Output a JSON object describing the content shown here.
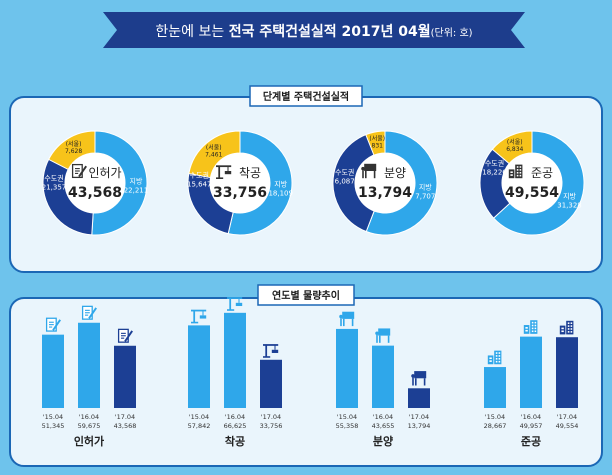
{
  "banner": {
    "prefix": "한눈에 보는 ",
    "title": "전국 주택건설실적 2017년 04월",
    "unit": "(단위: 호)"
  },
  "sections": {
    "stage": "단계별 주택건설실적",
    "trend": "연도별 물량추이"
  },
  "colors": {
    "background": "#6ec3ec",
    "panel": "#eaf5fc",
    "panel_border": "#1b67b5",
    "navy": "#1c3f94",
    "sky": "#2fa7ea",
    "yellow": "#f7c31a",
    "banner": "#1d3d8c"
  },
  "chart_data": [
    {
      "type": "pie",
      "title": "단계별 주택건설실적",
      "donuts": [
        {
          "name": "인허가",
          "icon": "document-pen-icon",
          "total": "43,568",
          "slices": [
            {
              "label": "지방",
              "value": 22211,
              "text": "22,211"
            },
            {
              "label": "수도권",
              "value": 21357,
              "text": "21,357"
            },
            {
              "label": "(서울)",
              "value": 7628,
              "text": "7,628"
            }
          ]
        },
        {
          "name": "착공",
          "icon": "crane-icon",
          "total": "33,756",
          "slices": [
            {
              "label": "지방",
              "value": 18109,
              "text": "18,109"
            },
            {
              "label": "수도권",
              "value": 15647,
              "text": "15,647"
            },
            {
              "label": "(서울)",
              "value": 7461,
              "text": "7,461"
            }
          ]
        },
        {
          "name": "분양",
          "icon": "sale-sign-icon",
          "total": "13,794",
          "slices": [
            {
              "label": "지방",
              "value": 7707,
              "text": "7,707"
            },
            {
              "label": "수도권",
              "value": 6087,
              "text": "6,087"
            },
            {
              "label": "(서울)",
              "value": 831,
              "text": "831"
            }
          ]
        },
        {
          "name": "준공",
          "icon": "building-icon",
          "total": "49,554",
          "slices": [
            {
              "label": "지방",
              "value": 31328,
              "text": "31,328"
            },
            {
              "label": "수도권",
              "value": 18226,
              "text": "18,226"
            },
            {
              "label": "(서울)",
              "value": 6834,
              "text": "6,834"
            }
          ]
        }
      ]
    },
    {
      "type": "bar",
      "title": "연도별 물량추이",
      "ylim": [
        0,
        70000
      ],
      "groups": [
        {
          "name": "인허가",
          "icon": "document-pen-icon",
          "bars": [
            {
              "year": "'15.04",
              "value": 51345,
              "text": "51,345"
            },
            {
              "year": "'16.04",
              "value": 59675,
              "text": "59,675"
            },
            {
              "year": "'17.04",
              "value": 43568,
              "text": "43,568"
            }
          ]
        },
        {
          "name": "착공",
          "icon": "crane-icon",
          "bars": [
            {
              "year": "'15.04",
              "value": 57842,
              "text": "57,842"
            },
            {
              "year": "'16.04",
              "value": 66625,
              "text": "66,625"
            },
            {
              "year": "'17.04",
              "value": 33756,
              "text": "33,756"
            }
          ]
        },
        {
          "name": "분양",
          "icon": "sale-sign-icon",
          "bars": [
            {
              "year": "'15.04",
              "value": 55358,
              "text": "55,358"
            },
            {
              "year": "'16.04",
              "value": 43655,
              "text": "43,655"
            },
            {
              "year": "'17.04",
              "value": 13794,
              "text": "13,794"
            }
          ]
        },
        {
          "name": "준공",
          "icon": "building-icon",
          "bars": [
            {
              "year": "'15.04",
              "value": 28667,
              "text": "28,667"
            },
            {
              "year": "'16.04",
              "value": 49957,
              "text": "49,957"
            },
            {
              "year": "'17.04",
              "value": 49554,
              "text": "49,554"
            }
          ]
        }
      ]
    }
  ]
}
